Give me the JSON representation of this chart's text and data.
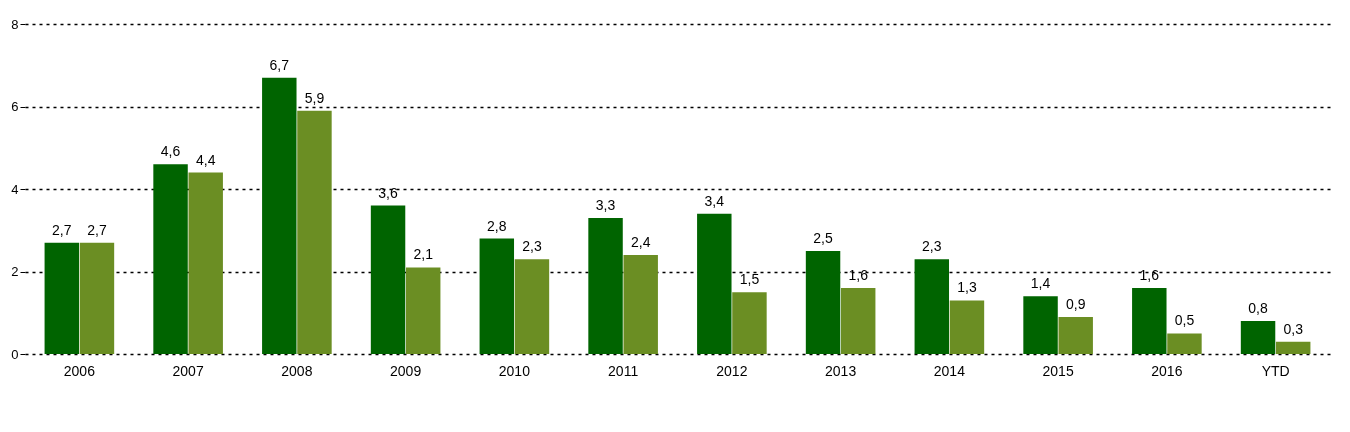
{
  "chart_data": {
    "type": "bar",
    "categories": [
      "2006",
      "2007",
      "2008",
      "2009",
      "2010",
      "2011",
      "2012",
      "2013",
      "2014",
      "2015",
      "2016",
      "YTD"
    ],
    "series": [
      {
        "color": "#006400",
        "values": [
          2.7,
          4.6,
          6.7,
          3.6,
          2.8,
          3.3,
          3.4,
          2.5,
          2.3,
          1.4,
          1.6,
          0.8
        ],
        "value_labels": [
          "2,7",
          "4,6",
          "6,7",
          "3,6",
          "2,8",
          "3,3",
          "3,4",
          "2,5",
          "2,3",
          "1,4",
          "1,6",
          "0,8"
        ]
      },
      {
        "color": "#6b8e23",
        "values": [
          2.7,
          4.4,
          5.9,
          2.1,
          2.3,
          2.4,
          1.5,
          1.6,
          1.3,
          0.9,
          0.5,
          0.3
        ],
        "value_labels": [
          "2,7",
          "4,4",
          "5,9",
          "2,1",
          "2,3",
          "2,4",
          "1,5",
          "1,6",
          "1,3",
          "0,9",
          "0,5",
          "0,3"
        ]
      }
    ],
    "ylim": [
      0,
      8
    ],
    "yticks": [
      0,
      2,
      4,
      6,
      8
    ],
    "grid": "y"
  }
}
